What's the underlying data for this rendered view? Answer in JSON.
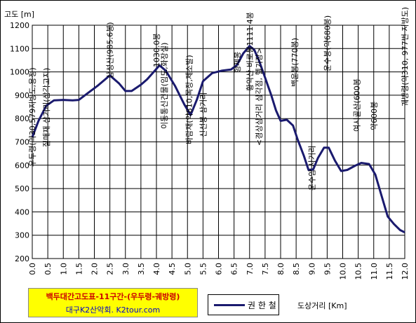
{
  "chart_data": {
    "type": "line",
    "ylabel": "고도 [m]",
    "xlabel": "도상거리 [Km]",
    "xlim": [
      0,
      12
    ],
    "ylim": [
      200,
      1200
    ],
    "x_ticks": [
      "0.0",
      "0.5",
      "1.0",
      "1.5",
      "2.0",
      "2.5",
      "3.0",
      "3.5",
      "4.0",
      "4.5",
      "5.0",
      "5.5",
      "6.0",
      "6.5",
      "7.0",
      "7.5",
      "8.0",
      "8.5",
      "9.0",
      "9.5",
      "10.0",
      "10.5",
      "11.0",
      "11.5",
      "12.0"
    ],
    "y_ticks": [
      "200",
      "300",
      "400",
      "500",
      "600",
      "700",
      "800",
      "900",
      "1000",
      "1100",
      "1200"
    ],
    "grid": true,
    "series": [
      {
        "name": "권 한 철",
        "color": "#1a1a6e",
        "x": [
          0.0,
          0.2,
          0.45,
          0.7,
          1.0,
          1.3,
          1.5,
          1.8,
          2.1,
          2.5,
          2.8,
          3.0,
          3.2,
          3.5,
          3.7,
          3.9,
          4.1,
          4.3,
          4.6,
          4.9,
          5.1,
          5.3,
          5.5,
          5.8,
          6.1,
          6.4,
          6.6,
          6.8,
          7.0,
          7.15,
          7.3,
          7.5,
          7.7,
          7.85,
          8.0,
          8.2,
          8.4,
          8.55,
          8.75,
          8.9,
          9.05,
          9.2,
          9.4,
          9.55,
          9.75,
          9.95,
          10.15,
          10.4,
          10.6,
          10.85,
          11.05,
          11.25,
          11.45,
          11.65,
          11.85,
          12.0
        ],
        "values": [
          720,
          790,
          855,
          878,
          880,
          878,
          880,
          910,
          940,
          985,
          950,
          918,
          918,
          945,
          968,
          998,
          1028,
          1005,
          940,
          860,
          815,
          880,
          960,
          995,
          1005,
          1010,
          1030,
          1080,
          1111,
          1095,
          1050,
          975,
          900,
          835,
          790,
          795,
          770,
          710,
          640,
          580,
          582,
          630,
          675,
          675,
          620,
          575,
          580,
          598,
          610,
          605,
          560,
          470,
          380,
          348,
          322,
          312
        ]
      }
    ],
    "annotations": [
      {
        "x": 0.0,
        "text": "우두령(약30,579지방도,용정)"
      },
      {
        "x": 0.45,
        "text": "질매재 삼거리(삼각고지)"
      },
      {
        "x": 2.5,
        "text": "삼성산(985.6봉)"
      },
      {
        "x": 4.0,
        "text": "1030.0봉"
      },
      {
        "x": 4.25,
        "text": "이동통신건물(임도,화장실)"
      },
      {
        "x": 5.05,
        "text": "바람재(약810,목장,제소발)"
      },
      {
        "x": 5.5,
        "text": "신선봉 삼거리"
      },
      {
        "x": 6.6,
        "text": "형제봉"
      },
      {
        "x": 7.0,
        "text": "황악산 비로봉1111.4봉"
      },
      {
        "x": 7.3,
        "text": "<경상삼거리 삼각점, 헬기장>"
      },
      {
        "x": 8.45,
        "text": "백운봉(770봉)"
      },
      {
        "x": 9.0,
        "text": "운수암 사거리"
      },
      {
        "x": 9.5,
        "text": "운수봉(약680봉)"
      },
      {
        "x": 10.45,
        "text": "여시골산(600봉"
      },
      {
        "x": 11.0,
        "text": "약600봉"
      },
      {
        "x": 12.0,
        "text": "궤방령(약310, 977번 지방도)"
      }
    ],
    "legend": {
      "placement": "bottom",
      "label": "권 한 철"
    }
  },
  "title": {
    "line1": "백두대간고도표-11구간-(우두령-궤방령)",
    "line2": "대구K2산악회. K2tour.com"
  }
}
